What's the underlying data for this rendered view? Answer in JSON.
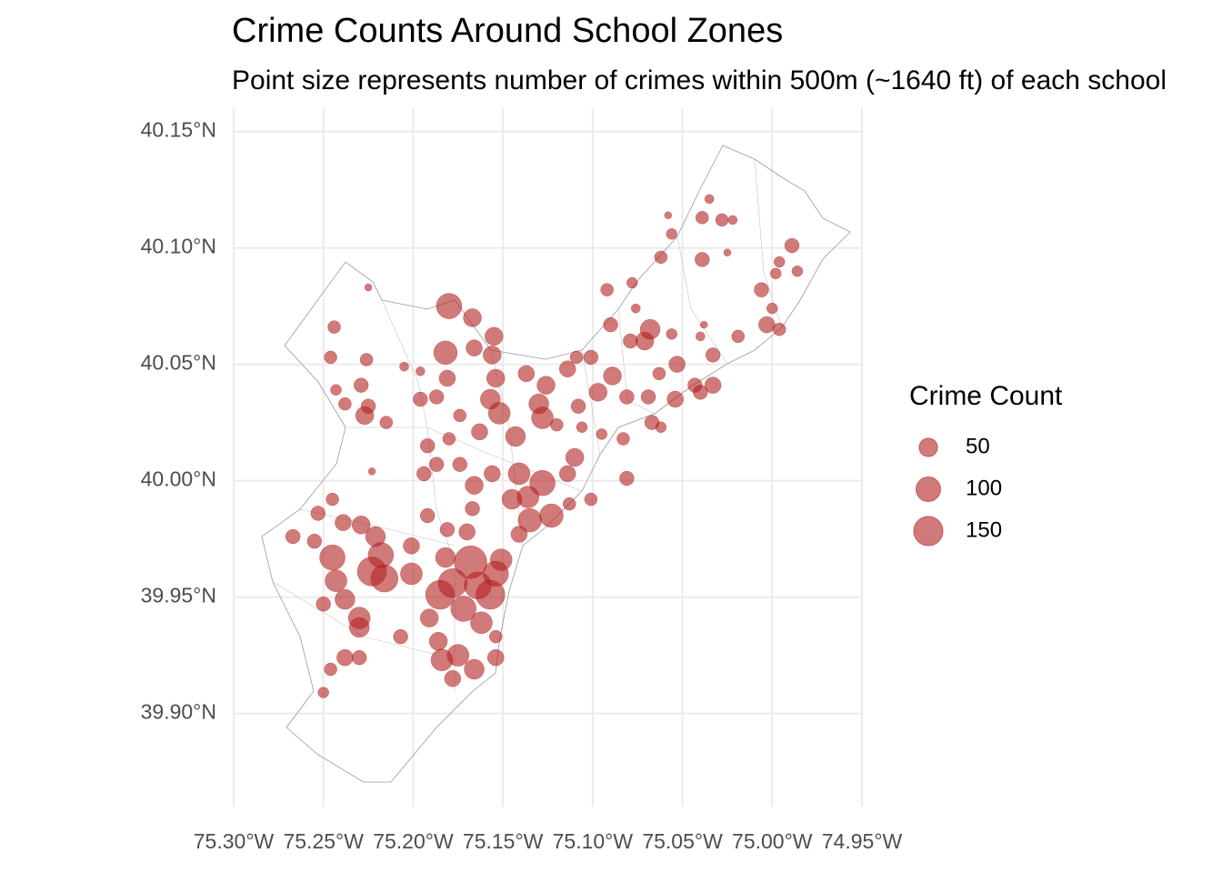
{
  "chart_data": {
    "type": "scatter",
    "title": "Crime Counts Around School Zones",
    "subtitle": "Point size represents number of crimes within 500m (~1640 ft) of each school",
    "color": "#b22222",
    "grid": true,
    "legend_position": "right",
    "xlim": [
      -75.3,
      -74.95
    ],
    "ylim": [
      39.86,
      40.16
    ],
    "xticks": [
      {
        "value": -75.3,
        "label": "75.30°W"
      },
      {
        "value": -75.25,
        "label": "75.25°W"
      },
      {
        "value": -75.2,
        "label": "75.20°W"
      },
      {
        "value": -75.15,
        "label": "75.15°W"
      },
      {
        "value": -75.1,
        "label": "75.10°W"
      },
      {
        "value": -75.05,
        "label": "75.05°W"
      },
      {
        "value": -75.0,
        "label": "75.00°W"
      },
      {
        "value": -74.95,
        "label": "74.95°W"
      }
    ],
    "yticks": [
      {
        "value": 39.9,
        "label": "39.90°N"
      },
      {
        "value": 39.95,
        "label": "39.95°N"
      },
      {
        "value": 40.0,
        "label": "40.00°N"
      },
      {
        "value": 40.05,
        "label": "40.05°N"
      },
      {
        "value": 40.1,
        "label": "40.10°N"
      },
      {
        "value": 40.15,
        "label": "40.15°N"
      }
    ],
    "size_legend": {
      "title": "Crime Count",
      "values": [
        50,
        100,
        150
      ]
    },
    "x": [
      -75.035,
      -75.039,
      -75.028,
      -75.058,
      -75.056,
      -75.022,
      -74.989,
      -74.996,
      -74.998,
      -74.986,
      -75.006,
      -75.039,
      -75.062,
      -75.025,
      -75.0,
      -75.003,
      -74.996,
      -75.019,
      -75.092,
      -75.078,
      -75.076,
      -75.09,
      -75.068,
      -75.071,
      -75.079,
      -75.056,
      -75.038,
      -75.04,
      -75.033,
      -75.053,
      -75.063,
      -75.043,
      -75.033,
      -75.054,
      -75.069,
      -75.089,
      -75.101,
      -75.109,
      -75.114,
      -75.097,
      -75.108,
      -75.067,
      -75.062,
      -75.083,
      -75.095,
      -75.106,
      -75.12,
      -75.11,
      -75.114,
      -75.081,
      -75.101,
      -75.128,
      -75.123,
      -75.135,
      -75.136,
      -75.141,
      -75.145,
      -75.128,
      -75.13,
      -75.126,
      -75.137,
      -75.154,
      -75.157,
      -75.152,
      -75.143,
      -75.163,
      -75.174,
      -75.166,
      -75.167,
      -75.18,
      -75.182,
      -75.155,
      -75.156,
      -75.181,
      -75.187,
      -75.196,
      -75.205,
      -75.196,
      -75.244,
      -75.246,
      -75.226,
      -75.229,
      -75.243,
      -75.225,
      -75.238,
      -75.227,
      -75.215,
      -75.225,
      -75.192,
      -75.18,
      -75.194,
      -75.187,
      -75.174,
      -75.166,
      -75.156,
      -75.167,
      -75.181,
      -75.192,
      -75.17,
      -75.168,
      -75.178,
      -75.185,
      -75.157,
      -75.164,
      -75.154,
      -75.151,
      -75.172,
      -75.162,
      -75.182,
      -75.186,
      -75.175,
      -75.184,
      -75.166,
      -75.178,
      -75.154,
      -75.154,
      -75.191,
      -75.201,
      -75.216,
      -75.223,
      -75.218,
      -75.221,
      -75.229,
      -75.239,
      -75.245,
      -75.243,
      -75.238,
      -75.23,
      -75.23,
      -75.238,
      -75.23,
      -75.246,
      -75.25,
      -75.25,
      -75.255,
      -75.253,
      -75.245,
      -75.267,
      -75.223,
      -75.201,
      -75.207,
      -75.141,
      -75.113,
      -75.081,
      -75.04
    ],
    "values": [
      40.121,
      40.113,
      40.112,
      40.114,
      40.106,
      40.112,
      40.101,
      40.094,
      40.089,
      40.09,
      40.082,
      40.095,
      40.096,
      40.098,
      40.074,
      40.067,
      40.065,
      40.062,
      40.082,
      40.085,
      40.074,
      40.067,
      40.065,
      40.06,
      40.06,
      40.063,
      40.067,
      40.062,
      40.054,
      40.05,
      40.046,
      40.041,
      40.041,
      40.035,
      40.036,
      40.045,
      40.053,
      40.053,
      40.048,
      40.038,
      40.032,
      40.025,
      40.023,
      40.018,
      40.02,
      40.023,
      40.024,
      40.01,
      40.003,
      40.001,
      39.992,
      39.999,
      39.985,
      39.983,
      39.993,
      40.003,
      39.992,
      40.027,
      40.033,
      40.041,
      40.046,
      40.044,
      40.035,
      40.029,
      40.019,
      40.021,
      40.028,
      40.057,
      40.07,
      40.075,
      40.055,
      40.062,
      40.054,
      40.044,
      40.036,
      40.035,
      40.049,
      40.047,
      40.066,
      40.053,
      40.052,
      40.041,
      40.039,
      40.032,
      40.033,
      40.028,
      40.025,
      40.083,
      40.015,
      40.018,
      40.003,
      40.007,
      40.007,
      39.998,
      40.003,
      39.988,
      39.979,
      39.985,
      39.978,
      39.965,
      39.956,
      39.951,
      39.951,
      39.955,
      39.96,
      39.966,
      39.945,
      39.939,
      39.967,
      39.931,
      39.925,
      39.923,
      39.919,
      39.915,
      39.924,
      39.933,
      39.941,
      39.96,
      39.958,
      39.961,
      39.968,
      39.976,
      39.981,
      39.982,
      39.967,
      39.957,
      39.949,
      39.941,
      39.937,
      39.924,
      39.924,
      39.919,
      39.909,
      39.947,
      39.974,
      39.986,
      39.992,
      39.976,
      40.004,
      39.972,
      39.933,
      39.977,
      39.99,
      40.036,
      40.038
    ],
    "sizes": [
      7,
      19,
      19,
      3,
      12,
      7,
      27,
      12,
      12,
      12,
      27,
      27,
      19,
      3,
      12,
      37,
      19,
      19,
      19,
      12,
      7,
      27,
      61,
      48,
      27,
      12,
      3,
      7,
      27,
      37,
      19,
      27,
      37,
      37,
      27,
      48,
      27,
      19,
      37,
      48,
      27,
      27,
      12,
      19,
      12,
      12,
      19,
      48,
      37,
      27,
      19,
      109,
      91,
      91,
      76,
      76,
      61,
      76,
      61,
      48,
      37,
      48,
      61,
      76,
      61,
      37,
      19,
      37,
      48,
      109,
      91,
      48,
      48,
      37,
      27,
      27,
      7,
      7,
      19,
      19,
      19,
      27,
      12,
      27,
      19,
      48,
      19,
      3,
      27,
      19,
      27,
      27,
      27,
      48,
      37,
      27,
      27,
      27,
      37,
      194,
      148,
      148,
      148,
      128,
      109,
      76,
      109,
      76,
      61,
      48,
      76,
      76,
      61,
      37,
      37,
      19,
      48,
      76,
      128,
      148,
      109,
      61,
      48,
      37,
      109,
      76,
      61,
      76,
      61,
      37,
      27,
      19,
      12,
      27,
      27,
      27,
      19,
      27,
      3,
      37,
      27,
      37,
      19,
      27,
      27
    ]
  }
}
